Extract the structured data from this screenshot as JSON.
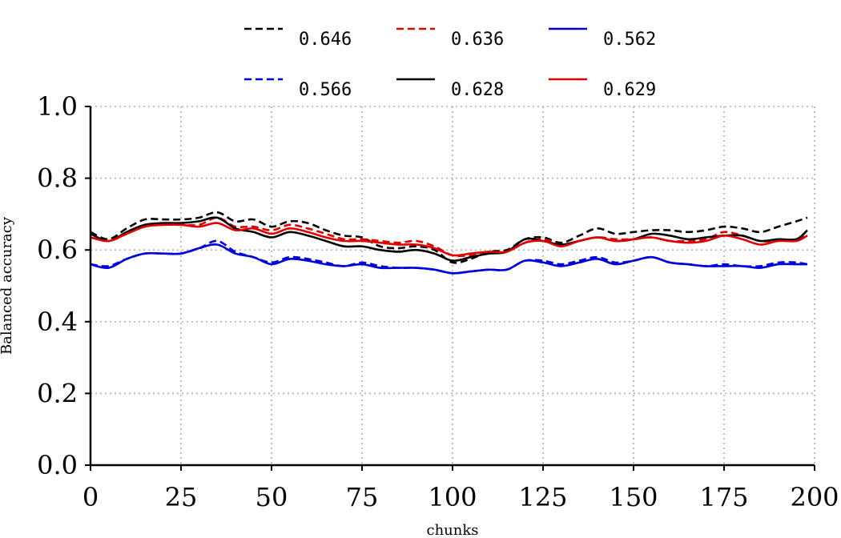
{
  "chart_data": {
    "type": "line",
    "xlabel": "chunks",
    "ylabel": "Balanced accuracy",
    "xlim": [
      0,
      200
    ],
    "ylim": [
      0.0,
      1.0
    ],
    "xticks": [
      0,
      25,
      50,
      75,
      100,
      125,
      150,
      175,
      200
    ],
    "yticks": [
      0.0,
      0.2,
      0.4,
      0.6,
      0.8,
      1.0
    ],
    "ytick_labels": [
      "0.0",
      "0.2",
      "0.4",
      "0.6",
      "0.8",
      "1.0"
    ],
    "grid": true,
    "legend_position": "top",
    "x": [
      0,
      5,
      10,
      15,
      20,
      25,
      30,
      35,
      40,
      45,
      50,
      55,
      60,
      65,
      70,
      75,
      80,
      85,
      90,
      95,
      100,
      105,
      110,
      115,
      120,
      125,
      130,
      135,
      140,
      145,
      150,
      155,
      160,
      165,
      170,
      175,
      180,
      185,
      190,
      195,
      198
    ],
    "series": [
      {
        "name": "0.646",
        "color": "#000000",
        "dash": true,
        "values": [
          0.65,
          0.63,
          0.66,
          0.685,
          0.685,
          0.685,
          0.69,
          0.705,
          0.68,
          0.685,
          0.665,
          0.68,
          0.675,
          0.655,
          0.64,
          0.635,
          0.61,
          0.605,
          0.61,
          0.6,
          0.565,
          0.575,
          0.595,
          0.6,
          0.63,
          0.635,
          0.62,
          0.64,
          0.66,
          0.645,
          0.65,
          0.655,
          0.655,
          0.65,
          0.655,
          0.665,
          0.66,
          0.65,
          0.665,
          0.68,
          0.69
        ]
      },
      {
        "name": "0.636",
        "color": "#e00000",
        "dash": true,
        "values": [
          0.635,
          0.625,
          0.645,
          0.665,
          0.67,
          0.67,
          0.67,
          0.69,
          0.665,
          0.665,
          0.655,
          0.67,
          0.66,
          0.645,
          0.63,
          0.63,
          0.625,
          0.62,
          0.625,
          0.61,
          0.585,
          0.585,
          0.59,
          0.595,
          0.62,
          0.63,
          0.615,
          0.625,
          0.635,
          0.63,
          0.63,
          0.635,
          0.625,
          0.625,
          0.63,
          0.65,
          0.64,
          0.625,
          0.625,
          0.63,
          0.645
        ]
      },
      {
        "name": "0.562",
        "color": "#0000dd",
        "dash": false,
        "values": [
          0.56,
          0.55,
          0.575,
          0.59,
          0.59,
          0.59,
          0.605,
          0.615,
          0.59,
          0.58,
          0.56,
          0.575,
          0.57,
          0.56,
          0.555,
          0.56,
          0.55,
          0.55,
          0.55,
          0.545,
          0.535,
          0.54,
          0.545,
          0.545,
          0.57,
          0.565,
          0.555,
          0.565,
          0.575,
          0.56,
          0.57,
          0.58,
          0.565,
          0.56,
          0.555,
          0.555,
          0.555,
          0.55,
          0.56,
          0.56,
          0.56
        ]
      },
      {
        "name": "0.566",
        "color": "#0000dd",
        "dash": true,
        "values": [
          0.56,
          0.555,
          0.575,
          0.59,
          0.59,
          0.59,
          0.605,
          0.625,
          0.595,
          0.58,
          0.565,
          0.58,
          0.575,
          0.565,
          0.555,
          0.565,
          0.555,
          0.55,
          0.55,
          0.545,
          0.535,
          0.54,
          0.545,
          0.545,
          0.57,
          0.57,
          0.56,
          0.57,
          0.58,
          0.565,
          0.57,
          0.58,
          0.565,
          0.56,
          0.555,
          0.56,
          0.555,
          0.555,
          0.565,
          0.565,
          0.56
        ]
      },
      {
        "name": "0.628",
        "color": "#000000",
        "dash": false,
        "values": [
          0.645,
          0.625,
          0.65,
          0.67,
          0.675,
          0.675,
          0.68,
          0.69,
          0.66,
          0.65,
          0.635,
          0.65,
          0.64,
          0.625,
          0.61,
          0.61,
          0.6,
          0.595,
          0.6,
          0.59,
          0.57,
          0.58,
          0.59,
          0.595,
          0.63,
          0.625,
          0.615,
          0.625,
          0.635,
          0.625,
          0.63,
          0.645,
          0.64,
          0.63,
          0.635,
          0.64,
          0.64,
          0.625,
          0.63,
          0.63,
          0.655
        ]
      },
      {
        "name": "0.629",
        "color": "#e00000",
        "dash": false,
        "values": [
          0.635,
          0.625,
          0.645,
          0.665,
          0.67,
          0.67,
          0.665,
          0.675,
          0.655,
          0.66,
          0.645,
          0.66,
          0.65,
          0.635,
          0.625,
          0.625,
          0.62,
          0.615,
          0.615,
          0.605,
          0.585,
          0.59,
          0.595,
          0.595,
          0.62,
          0.625,
          0.61,
          0.625,
          0.635,
          0.625,
          0.63,
          0.635,
          0.625,
          0.62,
          0.625,
          0.64,
          0.63,
          0.615,
          0.625,
          0.625,
          0.64
        ]
      }
    ]
  }
}
